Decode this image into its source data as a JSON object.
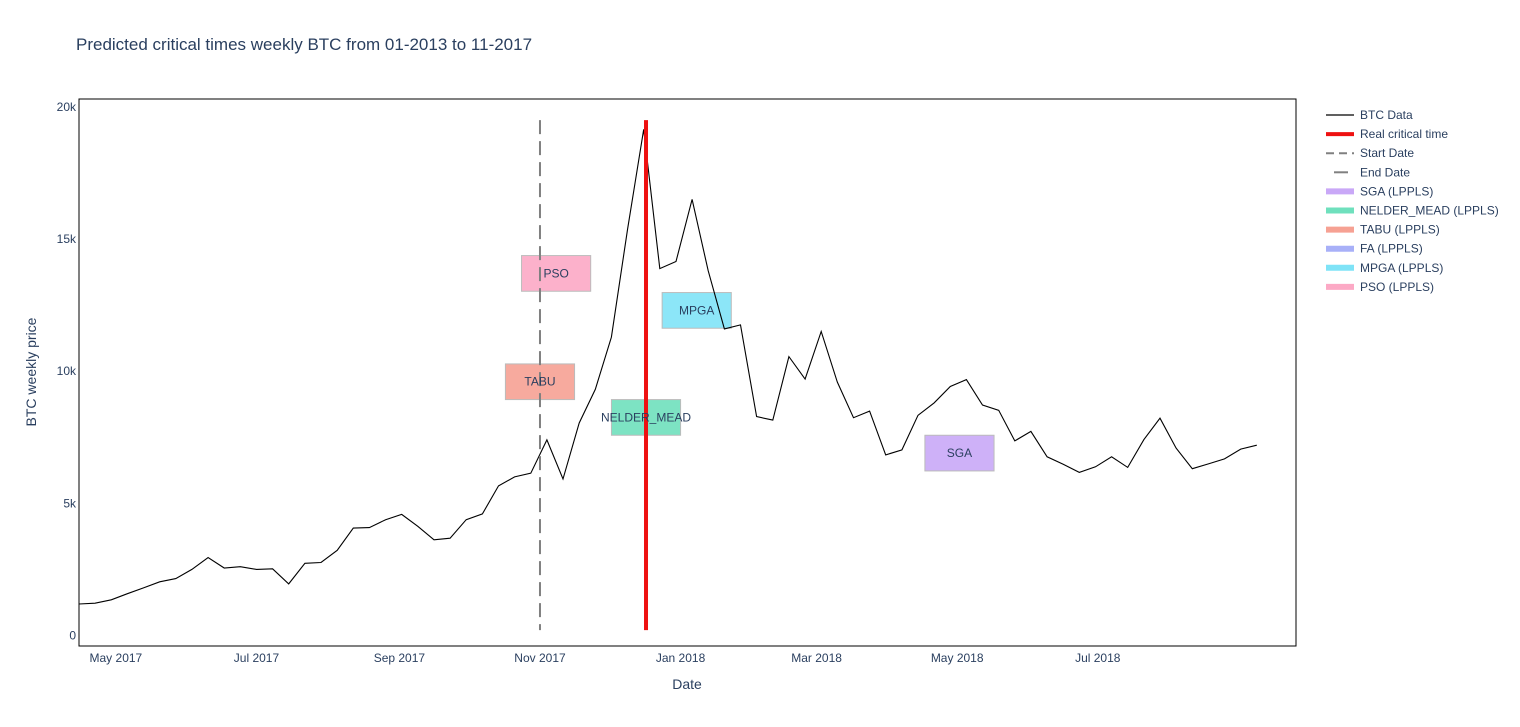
{
  "chart_data": {
    "type": "line",
    "title": "Predicted critical times weekly BTC from 01-2013 to 11-2017",
    "xlabel": "Date",
    "ylabel": "BTC weekly price",
    "x_range": [
      "2017-04-15",
      "2018-09-25"
    ],
    "y_range": [
      -400,
      20300
    ],
    "x_ticks": [
      {
        "date": "2017-05-01",
        "label": "May 2017"
      },
      {
        "date": "2017-07-01",
        "label": "Jul 2017"
      },
      {
        "date": "2017-09-01",
        "label": "Sep 2017"
      },
      {
        "date": "2017-11-01",
        "label": "Nov 2017"
      },
      {
        "date": "2018-01-01",
        "label": "Jan 2018"
      },
      {
        "date": "2018-03-01",
        "label": "Mar 2018"
      },
      {
        "date": "2018-05-01",
        "label": "May 2018"
      },
      {
        "date": "2018-07-01",
        "label": "Jul 2018"
      }
    ],
    "y_ticks": [
      {
        "value": 0,
        "label": "0"
      },
      {
        "value": 5000,
        "label": "5k"
      },
      {
        "value": 10000,
        "label": "10k"
      },
      {
        "value": 15000,
        "label": "15k"
      },
      {
        "value": 20000,
        "label": "20k"
      }
    ],
    "grid": false,
    "legend_position": "right",
    "series": [
      {
        "name": "BTC Data",
        "color": "#000000",
        "dates": [
          "2017-04-15",
          "2017-04-22",
          "2017-04-29",
          "2017-05-06",
          "2017-05-13",
          "2017-05-20",
          "2017-05-27",
          "2017-06-03",
          "2017-06-10",
          "2017-06-17",
          "2017-06-24",
          "2017-07-01",
          "2017-07-08",
          "2017-07-15",
          "2017-07-22",
          "2017-07-29",
          "2017-08-05",
          "2017-08-12",
          "2017-08-19",
          "2017-08-26",
          "2017-09-02",
          "2017-09-09",
          "2017-09-16",
          "2017-09-23",
          "2017-09-30",
          "2017-10-07",
          "2017-10-14",
          "2017-10-21",
          "2017-10-28",
          "2017-11-04",
          "2017-11-11",
          "2017-11-18",
          "2017-11-25",
          "2017-12-02",
          "2017-12-09",
          "2017-12-16",
          "2017-12-23",
          "2017-12-30",
          "2018-01-06",
          "2018-01-13",
          "2018-01-20",
          "2018-01-27",
          "2018-02-03",
          "2018-02-10",
          "2018-02-17",
          "2018-02-24",
          "2018-03-03",
          "2018-03-10",
          "2018-03-17",
          "2018-03-24",
          "2018-03-31",
          "2018-04-07",
          "2018-04-14",
          "2018-04-21",
          "2018-04-28",
          "2018-05-05",
          "2018-05-12",
          "2018-05-19",
          "2018-05-26",
          "2018-06-02",
          "2018-06-09",
          "2018-06-16",
          "2018-06-23",
          "2018-06-30",
          "2018-07-07",
          "2018-07-14",
          "2018-07-21",
          "2018-07-28",
          "2018-08-04",
          "2018-08-11",
          "2018-08-18",
          "2018-08-25",
          "2018-09-01",
          "2018-09-08"
        ],
        "values": [
          1190,
          1220,
          1350,
          1580,
          1800,
          2030,
          2150,
          2500,
          2950,
          2550,
          2600,
          2500,
          2520,
          1950,
          2730,
          2760,
          3220,
          4060,
          4080,
          4380,
          4580,
          4130,
          3620,
          3680,
          4380,
          4600,
          5660,
          6000,
          6140,
          7400,
          5920,
          8040,
          9310,
          11290,
          15380,
          19150,
          13880,
          14150,
          16500,
          13800,
          11600,
          11750,
          8280,
          8150,
          10550,
          9700,
          11500,
          9590,
          8240,
          8490,
          6830,
          7020,
          8330,
          8800,
          9420,
          9680,
          8720,
          8520,
          7360,
          7720,
          6760,
          6480,
          6170,
          6380,
          6760,
          6360,
          7410,
          8220,
          7090,
          6310,
          6490,
          6680,
          7050,
          7200
        ]
      }
    ],
    "markers": {
      "real_critical_time": {
        "name": "Real critical time",
        "date": "2017-12-17",
        "color": "#ee1111"
      },
      "start_date": {
        "name": "Start Date",
        "date": "2017-11-01",
        "color": "#808080"
      },
      "end_date": {
        "name": "End Date",
        "color": "#808080"
      }
    },
    "predictions": [
      {
        "name": "SGA (LPPLS)",
        "label": "SGA",
        "start": "2018-04-17",
        "end": "2018-05-17",
        "center_value": 6900,
        "color": "#c9a8f7"
      },
      {
        "name": "NELDER_MEAD (LPPLS)",
        "label": "NELDER_MEAD",
        "start": "2017-12-02",
        "end": "2018-01-01",
        "center_value": 8250,
        "color": "#6fe0bd"
      },
      {
        "name": "TABU (LPPLS)",
        "label": "TABU",
        "start": "2017-10-17",
        "end": "2017-11-16",
        "center_value": 9600,
        "color": "#f6a193"
      },
      {
        "name": "FA (LPPLS)",
        "label": "",
        "start": null,
        "end": null,
        "center_value": null,
        "color": "#a8b0f8"
      },
      {
        "name": "MPGA (LPPLS)",
        "label": "MPGA",
        "start": "2017-12-24",
        "end": "2018-01-23",
        "center_value": 12300,
        "color": "#7fe3f7"
      },
      {
        "name": "PSO (LPPLS)",
        "label": "PSO",
        "start": "2017-10-24",
        "end": "2017-11-23",
        "center_value": 13700,
        "color": "#fca9c5"
      }
    ],
    "prediction_box_height": 1350
  }
}
